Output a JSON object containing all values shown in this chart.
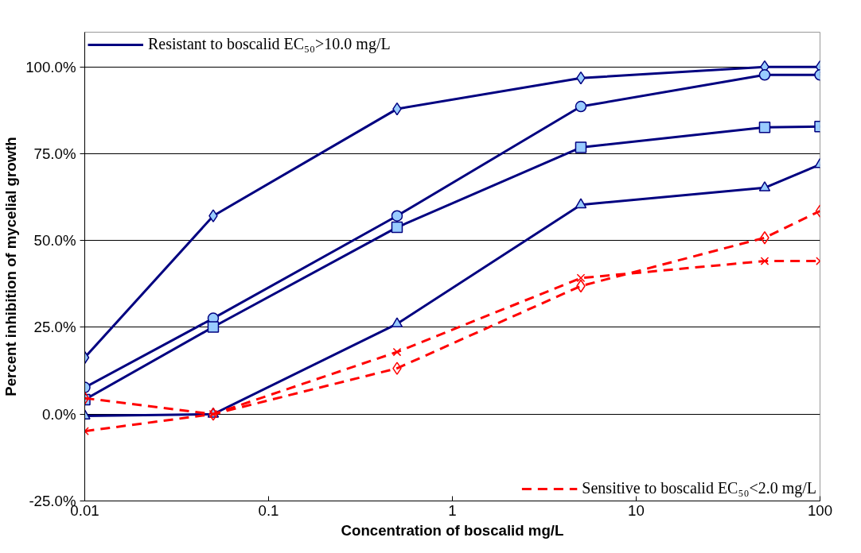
{
  "chart_data": {
    "type": "line",
    "xlabel": "Concentration of boscalid mg/L",
    "ylabel": "Percent inhibition of mycelial growth",
    "x": [
      0.01,
      0.05,
      0.5,
      5,
      50,
      100
    ],
    "log": "x",
    "xlim": [
      0.01,
      100
    ],
    "xticks": [
      0.01,
      0.1,
      1,
      10,
      100
    ],
    "ylim": [
      -25,
      110
    ],
    "yticks": [
      {
        "value": -25,
        "label": "-25.0%"
      },
      {
        "value": 0,
        "label": "0.0%"
      },
      {
        "value": 25,
        "label": "25.0%"
      },
      {
        "value": 50,
        "label": "50.0%"
      },
      {
        "value": 75,
        "label": "75.0%"
      },
      {
        "value": 100,
        "label": "100.0%"
      }
    ],
    "grid": "y",
    "legend": [
      "top left",
      "bottom right"
    ],
    "series": [
      {
        "name": "Resistant to boscalid EC₅₀>10.0 mg/L",
        "color": "#000080",
        "marker": "diamond",
        "line_style": "solid",
        "values": [
          16.3,
          57.1,
          87.9,
          96.8,
          100,
          100
        ]
      },
      {
        "color": "#000080",
        "marker": "circle",
        "line_style": "solid",
        "values": [
          7.7,
          27.6,
          57.1,
          88.6,
          97.7,
          97.7
        ]
      },
      {
        "color": "#000080",
        "marker": "square",
        "line_style": "solid",
        "values": [
          4.2,
          25.1,
          53.8,
          76.8,
          82.6,
          82.8
        ]
      },
      {
        "color": "#000080",
        "marker": "triangle",
        "line_style": "solid",
        "values": [
          -0.5,
          0,
          26.0,
          60.3,
          65.2,
          71.9
        ]
      },
      {
        "name": "Sensitive to boscalid EC₅₀<2.0 mg/L",
        "color": "#ff0000",
        "marker": "diamond",
        "line_style": "dashed",
        "values": [
          4.6,
          0,
          13.2,
          36.9,
          50.8,
          58.5
        ]
      },
      {
        "color": "#ff0000",
        "marker": "cross",
        "line_style": "dashed",
        "values": [
          -4.9,
          0,
          17.9,
          39.2,
          44.1,
          44.1
        ]
      }
    ]
  }
}
